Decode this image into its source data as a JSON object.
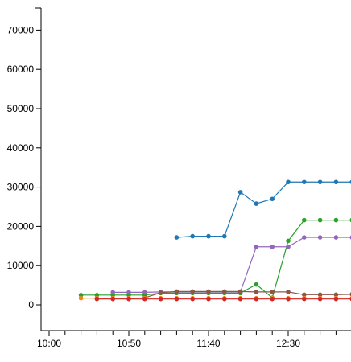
{
  "chart_data": {
    "type": "line",
    "grid": false,
    "legend": "none",
    "x_tick_labels": [
      "10:00",
      "10:50",
      "11:40",
      "12:30"
    ],
    "y_tick_labels": [
      "0",
      "10000",
      "20000",
      "30000",
      "40000",
      "50000",
      "60000",
      "70000"
    ],
    "ylim": [
      -7500,
      75000
    ],
    "xlim": [
      "09:55",
      "13:10"
    ],
    "x": [
      "10:20",
      "10:30",
      "10:40",
      "10:50",
      "11:00",
      "11:10",
      "11:20",
      "11:30",
      "11:40",
      "11:50",
      "12:00",
      "12:10",
      "12:20",
      "12:30",
      "12:40",
      "12:50",
      "13:00",
      "13:10"
    ],
    "series": [
      {
        "color": "#1f77b4",
        "values": [
          null,
          null,
          null,
          null,
          null,
          null,
          17200,
          17500,
          17500,
          17500,
          28700,
          25800,
          27000,
          31300,
          31300,
          31300,
          31300,
          31300
        ]
      },
      {
        "color": "#2ca02c",
        "values": [
          2500,
          2500,
          2500,
          2500,
          2500,
          3000,
          3000,
          3000,
          3000,
          3000,
          3000,
          5200,
          1800,
          16300,
          21600,
          21600,
          21600,
          21600
        ]
      },
      {
        "color": "#9467bd",
        "values": [
          null,
          null,
          3200,
          3200,
          3200,
          3300,
          3300,
          3300,
          3300,
          3300,
          3300,
          14800,
          14800,
          14800,
          17200,
          17200,
          17200,
          17200
        ]
      },
      {
        "color": "#8c564b",
        "values": [
          null,
          1600,
          1600,
          1600,
          1800,
          3100,
          3400,
          3400,
          3400,
          3400,
          3400,
          3300,
          3300,
          3300,
          2600,
          2600,
          2600,
          2700
        ]
      },
      {
        "color": "#ff7f0e",
        "values": [
          1700,
          1700,
          1700,
          1700,
          1700,
          1700,
          1700,
          1700,
          1700,
          1700,
          1700,
          1700,
          1700,
          1700,
          1700,
          1700,
          1700,
          1700
        ]
      },
      {
        "color": "#d62728",
        "values": [
          null,
          1500,
          1500,
          1500,
          1500,
          1500,
          1500,
          1500,
          1500,
          1500,
          1500,
          1500,
          1500,
          1500,
          1500,
          1500,
          1500,
          1500
        ]
      }
    ]
  }
}
